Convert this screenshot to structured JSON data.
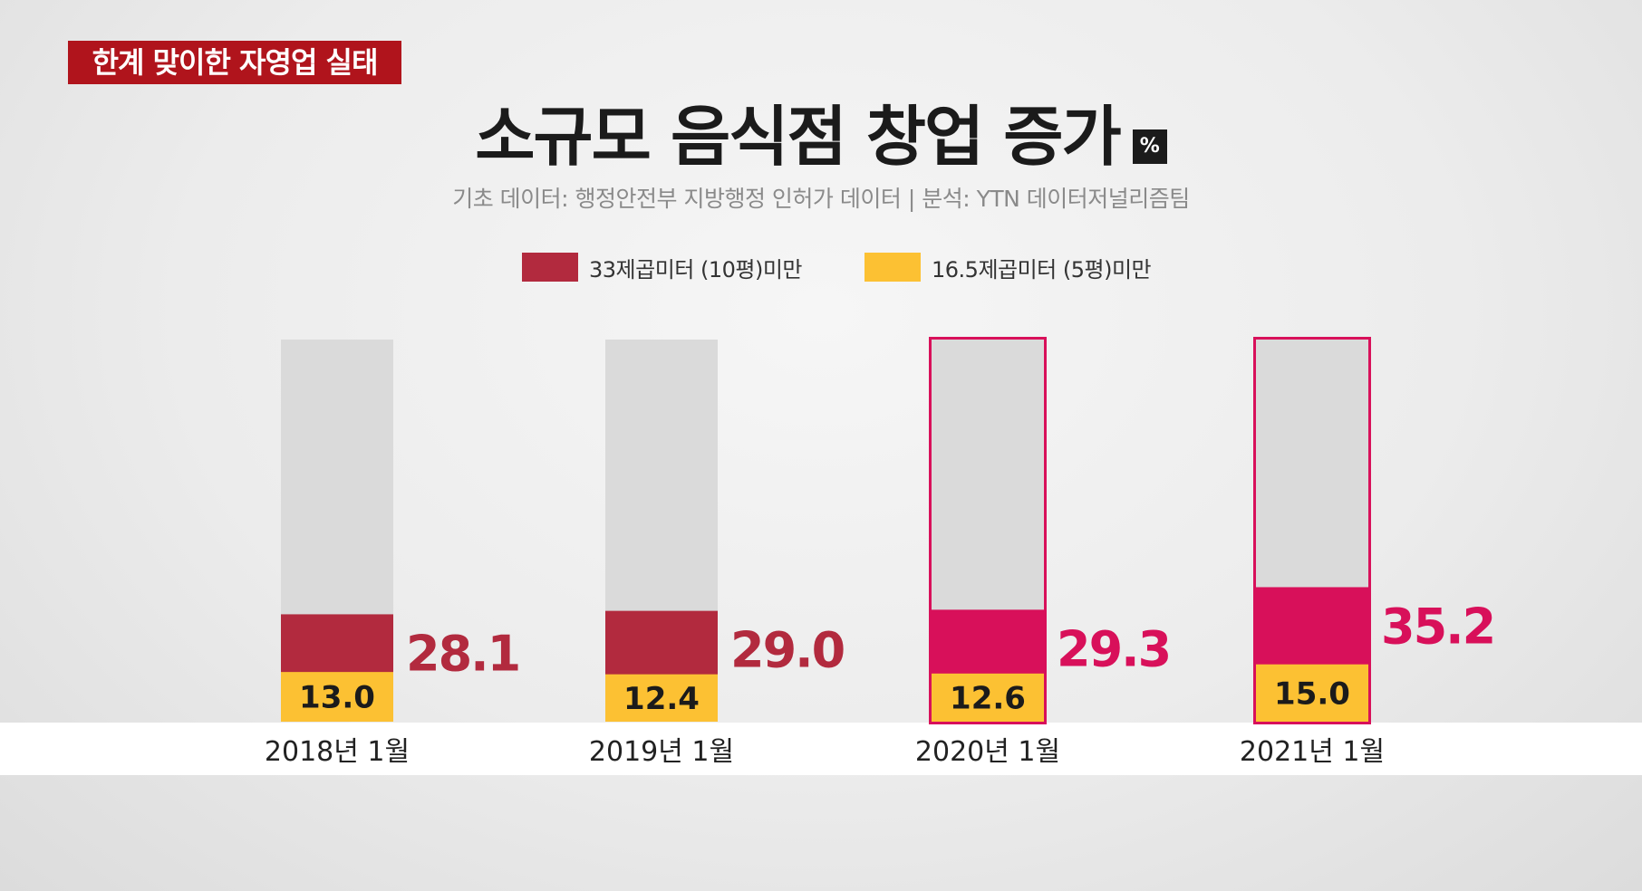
{
  "badge": "한계 맞이한 자영업 실태",
  "title": "소규모 음식점 창업 증가",
  "unit": "%",
  "source": "기초 데이터: 행정안전부 지방행정 인허가 데이터  |  분석: YTN 데이터저널리즘팀",
  "colors": {
    "red": "#b22a3e",
    "magenta": "#d8105a",
    "yellow": "#fcc133",
    "track": "#dadada"
  },
  "chart_data": {
    "type": "bar",
    "title": "소규모 음식점 창업 증가",
    "unit": "%",
    "categories": [
      "2018년 1월",
      "2019년 1월",
      "2020년 1월",
      "2021년 1월"
    ],
    "series": [
      {
        "name": "33제곱미터 (10평)미만",
        "values": [
          28.1,
          29.0,
          29.3,
          35.2
        ]
      },
      {
        "name": "16.5제곱미터 (5평)미만",
        "values": [
          13.0,
          12.4,
          12.6,
          15.0
        ]
      }
    ],
    "highlighted": [
      false,
      false,
      true,
      true
    ],
    "ylim": [
      0,
      100
    ]
  }
}
